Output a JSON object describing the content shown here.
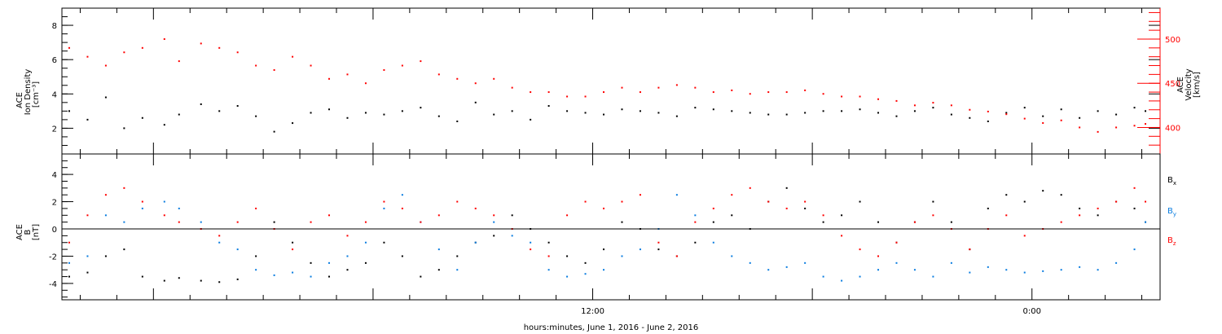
{
  "chart_data": [
    {
      "type": "scatter",
      "panel": "top",
      "ylabel": {
        "line1": "ACE",
        "line2": "Ion Density",
        "units": "[cm⁻³]"
      },
      "y2label": {
        "line1": "ACE",
        "line2": "Velocity",
        "units": "[km/s]"
      },
      "ylim": [
        0.5,
        9
      ],
      "y2lim": [
        370,
        535
      ],
      "xlim": [
        -2.5,
        27.5
      ],
      "yticks": [
        "2",
        "4",
        "6",
        "8"
      ],
      "y2ticks": [
        "400",
        "450",
        "500"
      ],
      "axis_color_left": "#000000",
      "axis_color_right": "#ff0000",
      "series": [
        {
          "color": "#000000",
          "axis": "left",
          "x": [
            -2.3,
            -1.8,
            -1.3,
            -0.8,
            -0.3,
            0.3,
            0.7,
            1.3,
            1.8,
            2.3,
            2.8,
            3.3,
            3.8,
            4.3,
            4.8,
            5.3,
            5.8,
            6.3,
            6.8,
            7.3,
            7.8,
            8.3,
            8.8,
            9.3,
            9.8,
            10.3,
            10.8,
            11.3,
            11.8,
            12.3,
            12.8,
            13.3,
            13.8,
            14.3,
            14.8,
            15.3,
            15.8,
            16.3,
            16.8,
            17.3,
            17.8,
            18.3,
            18.8,
            19.3,
            19.8,
            20.3,
            20.8,
            21.3,
            21.8,
            22.3,
            22.8,
            23.3,
            23.8,
            24.3,
            24.8,
            25.3,
            25.8,
            26.3,
            26.8,
            27.1
          ],
          "y": [
            3.0,
            2.5,
            3.8,
            2.0,
            2.6,
            2.2,
            2.8,
            3.4,
            3.0,
            3.3,
            2.7,
            1.8,
            2.3,
            2.9,
            3.1,
            2.6,
            2.9,
            2.8,
            3.0,
            3.2,
            2.7,
            2.4,
            3.5,
            2.8,
            3.0,
            2.5,
            3.3,
            3.0,
            2.9,
            2.8,
            3.1,
            3.0,
            2.9,
            2.7,
            3.2,
            3.1,
            3.0,
            2.9,
            2.8,
            2.8,
            2.9,
            3.0,
            3.0,
            3.1,
            2.9,
            2.7,
            3.0,
            3.2,
            2.8,
            2.6,
            2.4,
            2.9,
            3.2,
            2.7,
            3.1,
            2.6,
            3.0,
            2.8,
            3.2,
            3.0
          ]
        },
        {
          "color": "#ff0000",
          "axis": "right",
          "x": [
            -2.3,
            -1.8,
            -1.3,
            -0.8,
            -0.3,
            0.3,
            0.7,
            1.3,
            1.8,
            2.3,
            2.8,
            3.3,
            3.8,
            4.3,
            4.8,
            5.3,
            5.8,
            6.3,
            6.8,
            7.3,
            7.8,
            8.3,
            8.8,
            9.3,
            9.8,
            10.3,
            10.8,
            11.3,
            11.8,
            12.3,
            12.8,
            13.3,
            13.8,
            14.3,
            14.8,
            15.3,
            15.8,
            16.3,
            16.8,
            17.3,
            17.8,
            18.3,
            18.8,
            19.3,
            19.8,
            20.3,
            20.8,
            21.3,
            21.8,
            22.3,
            22.8,
            23.3,
            23.8,
            24.3,
            24.8,
            25.3,
            25.8,
            26.3,
            26.8,
            27.1
          ],
          "y": [
            490,
            480,
            470,
            485,
            490,
            500,
            475,
            495,
            490,
            485,
            470,
            465,
            480,
            470,
            455,
            460,
            450,
            465,
            470,
            475,
            460,
            455,
            450,
            455,
            445,
            440,
            440,
            435,
            435,
            440,
            445,
            440,
            445,
            448,
            445,
            440,
            442,
            438,
            440,
            440,
            442,
            438,
            435,
            435,
            432,
            430,
            425,
            428,
            425,
            420,
            418,
            415,
            410,
            405,
            408,
            400,
            395,
            400,
            402,
            404
          ]
        }
      ]
    },
    {
      "type": "scatter",
      "panel": "bottom",
      "ylabel": {
        "line1": "ACE",
        "line2": "B",
        "units": "[nT]"
      },
      "ylim": [
        -5.2,
        5.5
      ],
      "xlim": [
        -2.5,
        27.5
      ],
      "yticks": [
        "-4",
        "-2",
        "0",
        "2",
        "4"
      ],
      "zero_line": true,
      "xticks": [
        "12:00",
        "0:00"
      ],
      "xlabel": "hours:minutes, June  1, 2016 - June  2, 2016",
      "series": [
        {
          "name": "Bx",
          "name_base": "B",
          "name_sub": "x",
          "color": "#000000",
          "x": [
            -2.3,
            -1.8,
            -1.3,
            -0.8,
            -0.3,
            0.3,
            0.7,
            1.3,
            1.8,
            2.3,
            2.8,
            3.3,
            3.8,
            4.3,
            4.8,
            5.3,
            5.8,
            6.3,
            6.8,
            7.3,
            7.8,
            8.3,
            8.8,
            9.3,
            9.8,
            10.3,
            10.8,
            11.3,
            11.8,
            12.3,
            12.8,
            13.3,
            13.8,
            14.3,
            14.8,
            15.3,
            15.8,
            16.3,
            16.8,
            17.3,
            17.8,
            18.3,
            18.8,
            19.3,
            19.8,
            20.3,
            20.8,
            21.3,
            21.8,
            22.3,
            22.8,
            23.3,
            23.8,
            24.3,
            24.8,
            25.3,
            25.8,
            26.3,
            26.8,
            27.1
          ],
          "y": [
            -3.5,
            -3.2,
            -2.0,
            -1.5,
            -3.5,
            -3.8,
            -3.6,
            -3.8,
            -3.9,
            -3.7,
            -2.0,
            0.5,
            -1.0,
            -2.5,
            -3.5,
            -3.0,
            -2.5,
            -1.0,
            -2.0,
            -3.5,
            -3.0,
            -2.0,
            -1.0,
            -0.5,
            1.0,
            0.0,
            -1.0,
            -2.0,
            -2.5,
            -1.5,
            0.5,
            0.0,
            -1.5,
            -2.0,
            -1.0,
            0.5,
            1.0,
            0.0,
            2.0,
            3.0,
            1.5,
            0.5,
            1.0,
            2.0,
            0.5,
            -1.0,
            0.5,
            2.0,
            0.5,
            -1.5,
            1.5,
            2.5,
            2.0,
            2.8,
            2.5,
            1.5,
            1.0,
            2.0,
            1.5,
            0.5
          ]
        },
        {
          "name": "By",
          "name_base": "B",
          "name_sub": "y",
          "color": "#0a7de0",
          "x": [
            -2.3,
            -1.8,
            -1.3,
            -0.8,
            -0.3,
            0.3,
            0.7,
            1.3,
            1.8,
            2.3,
            2.8,
            3.3,
            3.8,
            4.3,
            4.8,
            5.3,
            5.8,
            6.3,
            6.8,
            7.3,
            7.8,
            8.3,
            8.8,
            9.3,
            9.8,
            10.3,
            10.8,
            11.3,
            11.8,
            12.3,
            12.8,
            13.3,
            13.8,
            14.3,
            14.8,
            15.3,
            15.8,
            16.3,
            16.8,
            17.3,
            17.8,
            18.3,
            18.8,
            19.3,
            19.8,
            20.3,
            20.8,
            21.3,
            21.8,
            22.3,
            22.8,
            23.3,
            23.8,
            24.3,
            24.8,
            25.3,
            25.8,
            26.3,
            26.8,
            27.1
          ],
          "y": [
            -2.5,
            -2.0,
            1.0,
            0.5,
            1.5,
            2.0,
            1.5,
            0.5,
            -1.0,
            -1.5,
            -3.0,
            -3.4,
            -3.2,
            -3.5,
            -2.5,
            -2.0,
            -1.0,
            1.5,
            2.5,
            0.5,
            -1.5,
            -3.0,
            -1.0,
            0.5,
            -0.5,
            -1.0,
            -3.0,
            -3.5,
            -3.3,
            -3.0,
            -2.0,
            -1.5,
            0.0,
            2.5,
            1.0,
            -1.0,
            -2.0,
            -2.5,
            -3.0,
            -2.8,
            -2.5,
            -3.5,
            -3.8,
            -3.5,
            -3.0,
            -2.5,
            -3.0,
            -3.5,
            -2.5,
            -3.2,
            -2.8,
            -3.0,
            -3.2,
            -3.1,
            -3.0,
            -2.8,
            -3.0,
            -2.5,
            -1.5,
            0.5
          ]
        },
        {
          "name": "Bz",
          "name_base": "B",
          "name_sub": "z",
          "color": "#ff0000",
          "x": [
            -2.3,
            -1.8,
            -1.3,
            -0.8,
            -0.3,
            0.3,
            0.7,
            1.3,
            1.8,
            2.3,
            2.8,
            3.3,
            3.8,
            4.3,
            4.8,
            5.3,
            5.8,
            6.3,
            6.8,
            7.3,
            7.8,
            8.3,
            8.8,
            9.3,
            9.8,
            10.3,
            10.8,
            11.3,
            11.8,
            12.3,
            12.8,
            13.3,
            13.8,
            14.3,
            14.8,
            15.3,
            15.8,
            16.3,
            16.8,
            17.3,
            17.8,
            18.3,
            18.8,
            19.3,
            19.8,
            20.3,
            20.8,
            21.3,
            21.8,
            22.3,
            22.8,
            23.3,
            23.8,
            24.3,
            24.8,
            25.3,
            25.8,
            26.3,
            26.8,
            27.1
          ],
          "y": [
            -1.0,
            1.0,
            2.5,
            3.0,
            2.0,
            1.0,
            0.5,
            0.0,
            -0.5,
            0.5,
            1.5,
            0.0,
            -1.5,
            0.5,
            1.0,
            -0.5,
            0.5,
            2.0,
            1.5,
            0.5,
            1.0,
            2.0,
            1.5,
            1.0,
            0.0,
            -1.5,
            -2.0,
            1.0,
            2.0,
            1.5,
            2.0,
            2.5,
            -1.0,
            -2.0,
            0.5,
            1.5,
            2.5,
            3.0,
            2.0,
            1.5,
            2.0,
            1.0,
            -0.5,
            -1.5,
            -2.0,
            -1.0,
            0.5,
            1.0,
            0.0,
            -1.5,
            0.0,
            1.0,
            -0.5,
            0.0,
            0.5,
            1.0,
            1.5,
            2.0,
            3.0,
            2.0
          ]
        }
      ]
    }
  ]
}
